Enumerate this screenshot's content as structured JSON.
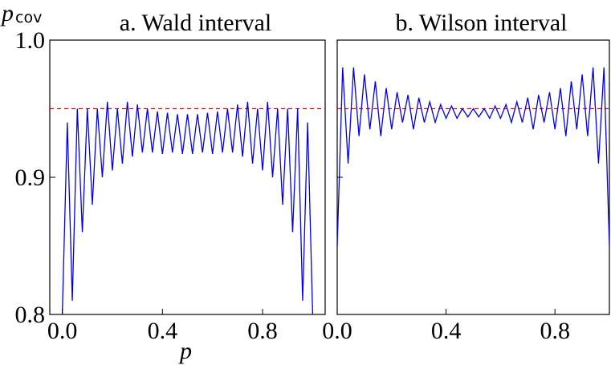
{
  "chart_data": [
    {
      "type": "line",
      "title": "a. Wald interval",
      "ylabel": "p",
      "ylabel_subscript": "cov",
      "xlabel": "p",
      "xlim": [
        -0.05,
        1.05
      ],
      "xticks": [
        {
          "value": 0,
          "label": "0.0"
        },
        0.4,
        0.8
      ],
      "ylim": [
        0.8,
        1.0
      ],
      "yticks": [
        {
          "value": 0.8,
          "label": "0.8"
        },
        0.9,
        {
          "value": 1.0,
          "label": "1.0"
        }
      ],
      "show_ytick_labels": true,
      "color": "#0000ee",
      "hline": 0.95,
      "hline_color": "#dd0000",
      "x": [
        0,
        0.02,
        0.04,
        0.06,
        0.08,
        0.1,
        0.12,
        0.14,
        0.16,
        0.18,
        0.2,
        0.22,
        0.24,
        0.26,
        0.28,
        0.3,
        0.32,
        0.34,
        0.36,
        0.38,
        0.4,
        0.42,
        0.44,
        0.46,
        0.48,
        0.5,
        0.52,
        0.54,
        0.56,
        0.58,
        0.6,
        0.62,
        0.64,
        0.66,
        0.68,
        0.7,
        0.72,
        0.74,
        0.76,
        0.78,
        0.8,
        0.82,
        0.84,
        0.86,
        0.88,
        0.9,
        0.92,
        0.94,
        0.96,
        0.98,
        1
      ],
      "values": [
        0.8,
        0.94,
        0.81,
        0.95,
        0.86,
        0.95,
        0.88,
        0.95,
        0.9,
        0.955,
        0.905,
        0.95,
        0.91,
        0.955,
        0.915,
        0.953,
        0.918,
        0.95,
        0.918,
        0.948,
        0.917,
        0.947,
        0.918,
        0.946,
        0.917,
        0.946,
        0.917,
        0.946,
        0.918,
        0.947,
        0.917,
        0.948,
        0.918,
        0.95,
        0.918,
        0.953,
        0.915,
        0.955,
        0.91,
        0.95,
        0.905,
        0.955,
        0.9,
        0.95,
        0.88,
        0.95,
        0.86,
        0.95,
        0.81,
        0.94,
        0.8
      ]
    },
    {
      "type": "line",
      "title": "b. Wilson interval",
      "xlim": [
        0,
        1.0
      ],
      "xticks": [
        {
          "value": 0,
          "label": "0.0"
        },
        0.4,
        0.8
      ],
      "ylim": [
        0.8,
        1.0
      ],
      "yticks": [
        0.8,
        0.9,
        1.0
      ],
      "show_ytick_labels": false,
      "color": "#0000ee",
      "hline": 0.95,
      "hline_color": "#dd0000",
      "x": [
        0,
        0.02,
        0.04,
        0.06,
        0.08,
        0.1,
        0.12,
        0.14,
        0.16,
        0.18,
        0.2,
        0.22,
        0.24,
        0.26,
        0.28,
        0.3,
        0.32,
        0.34,
        0.36,
        0.38,
        0.4,
        0.42,
        0.44,
        0.46,
        0.48,
        0.5,
        0.52,
        0.54,
        0.56,
        0.58,
        0.6,
        0.62,
        0.64,
        0.66,
        0.68,
        0.7,
        0.72,
        0.74,
        0.76,
        0.78,
        0.8,
        0.82,
        0.84,
        0.86,
        0.88,
        0.9,
        0.92,
        0.94,
        0.96,
        0.98,
        1
      ],
      "values": [
        0.85,
        0.98,
        0.91,
        0.98,
        0.93,
        0.975,
        0.935,
        0.97,
        0.93,
        0.965,
        0.935,
        0.962,
        0.94,
        0.96,
        0.935,
        0.958,
        0.94,
        0.955,
        0.94,
        0.953,
        0.943,
        0.952,
        0.943,
        0.95,
        0.944,
        0.95,
        0.944,
        0.95,
        0.943,
        0.952,
        0.943,
        0.953,
        0.94,
        0.955,
        0.94,
        0.958,
        0.935,
        0.96,
        0.94,
        0.962,
        0.935,
        0.965,
        0.93,
        0.97,
        0.935,
        0.975,
        0.93,
        0.98,
        0.91,
        0.98,
        0.85
      ]
    }
  ]
}
